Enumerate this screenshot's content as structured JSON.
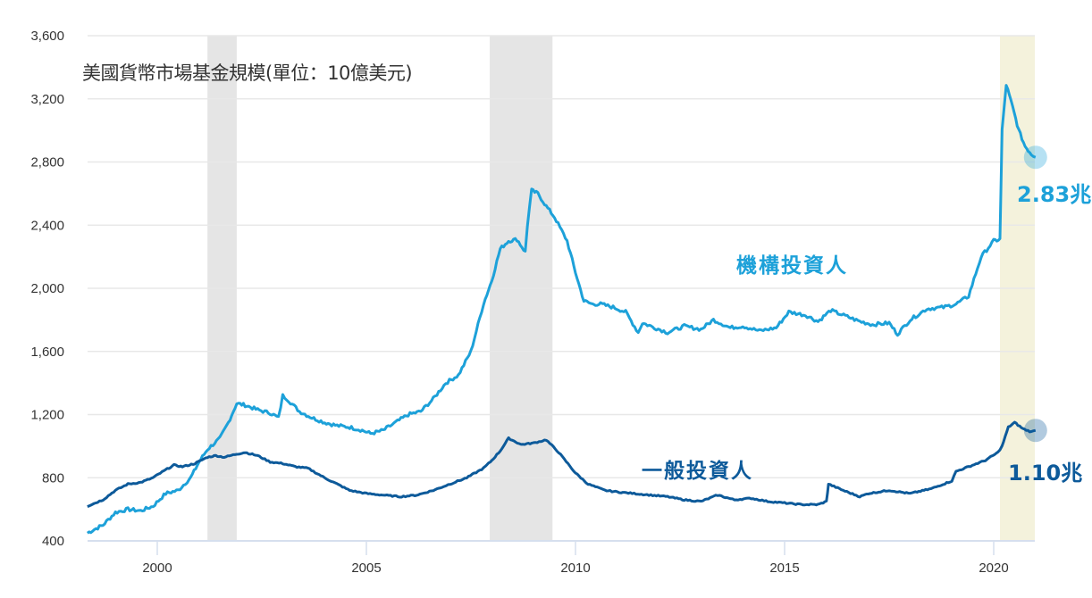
{
  "title": "美國貨幣市場基金規模(單位：10億美元)",
  "colors": {
    "institutional": "#1da1d9",
    "retail": "#0d5a9a",
    "recession_band": "#e5e5e5",
    "covid_band": "#f4f2dc",
    "grid": "#e8e8e8",
    "axis": "#d6dfee"
  },
  "labels": {
    "institutional": "機構投資人",
    "retail": "一般投資人",
    "institutional_end": "2.83兆",
    "retail_end": "1.10兆"
  },
  "chart_data": {
    "type": "line",
    "title": "美國貨幣市場基金規模(單位：10億美元)",
    "xlabel": "",
    "ylabel": "",
    "ylim": [
      400,
      3600
    ],
    "xlim": [
      1998.33,
      2021.0
    ],
    "yticks": [
      400,
      800,
      1200,
      1600,
      2000,
      2400,
      2800,
      3200,
      3600
    ],
    "ytick_labels": [
      "400",
      "800",
      "1,200",
      "1,600",
      "2,000",
      "2,400",
      "2,800",
      "3,200",
      "3,600"
    ],
    "xticks": [
      2000,
      2005,
      2010,
      2015,
      2020
    ],
    "xtick_labels": [
      "2000",
      "2005",
      "2010",
      "2015",
      "2020"
    ],
    "grid": true,
    "legend": "none (inline series labels)",
    "shaded_regions": [
      {
        "name": "recession-2001",
        "start": 2001.2,
        "end": 2001.9,
        "color": "#e5e5e5"
      },
      {
        "name": "recession-2008",
        "start": 2007.95,
        "end": 2009.45,
        "color": "#e5e5e5"
      },
      {
        "name": "covid-2020",
        "start": 2020.15,
        "end": 2021.05,
        "color": "#f4f2dc"
      }
    ],
    "annotations": [
      {
        "text": "機構投資人",
        "series": "institutional"
      },
      {
        "text": "一般投資人",
        "series": "retail"
      },
      {
        "text": "2.83兆",
        "x": 2021.0,
        "y": 2830
      },
      {
        "text": "1.10兆",
        "x": 2021.0,
        "y": 1100
      }
    ],
    "series": [
      {
        "name": "機構投資人",
        "key": "institutional",
        "x": [
          1998.33,
          1998.7,
          1999.0,
          1999.3,
          1999.6,
          1999.9,
          2000.2,
          2000.5,
          2000.8,
          2001.0,
          2001.2,
          2001.5,
          2001.7,
          2001.9,
          2002.1,
          2002.4,
          2002.7,
          2002.9,
          2003.0,
          2003.1,
          2003.4,
          2003.7,
          2004.0,
          2004.3,
          2004.6,
          2004.9,
          2005.1,
          2005.4,
          2005.7,
          2006.0,
          2006.3,
          2006.6,
          2006.9,
          2007.2,
          2007.5,
          2007.8,
          2008.0,
          2008.2,
          2008.4,
          2008.6,
          2008.8,
          2008.85,
          2008.95,
          2009.1,
          2009.3,
          2009.5,
          2009.8,
          2010.0,
          2010.2,
          2010.4,
          2010.6,
          2010.9,
          2011.2,
          2011.5,
          2011.6,
          2011.8,
          2012.2,
          2012.6,
          2013.0,
          2013.3,
          2013.7,
          2014.0,
          2014.4,
          2014.8,
          2015.1,
          2015.5,
          2015.8,
          2016.1,
          2016.5,
          2016.8,
          2017.1,
          2017.5,
          2017.7,
          2018.0,
          2018.4,
          2018.8,
          2019.1,
          2019.4,
          2019.7,
          2020.0,
          2020.15,
          2020.2,
          2020.3,
          2020.45,
          2020.6,
          2020.75,
          2020.9,
          2021.0
        ],
        "y": [
          450,
          500,
          580,
          600,
          590,
          620,
          700,
          720,
          800,
          900,
          980,
          1050,
          1150,
          1270,
          1260,
          1230,
          1210,
          1180,
          1320,
          1300,
          1220,
          1180,
          1150,
          1130,
          1120,
          1100,
          1080,
          1100,
          1150,
          1200,
          1220,
          1300,
          1400,
          1450,
          1600,
          1900,
          2050,
          2250,
          2300,
          2310,
          2230,
          2400,
          2620,
          2600,
          2520,
          2450,
          2300,
          2100,
          1920,
          1900,
          1900,
          1880,
          1850,
          1720,
          1780,
          1760,
          1720,
          1760,
          1740,
          1800,
          1750,
          1760,
          1730,
          1750,
          1850,
          1830,
          1790,
          1860,
          1820,
          1790,
          1770,
          1780,
          1710,
          1800,
          1870,
          1880,
          1900,
          1950,
          2200,
          2300,
          2310,
          3000,
          3290,
          3150,
          3000,
          2900,
          2850,
          2830
        ]
      },
      {
        "name": "一般投資人",
        "key": "retail",
        "x": [
          1998.33,
          1998.7,
          1999.0,
          1999.3,
          1999.6,
          1999.9,
          2000.2,
          2000.4,
          2000.6,
          2000.9,
          2001.2,
          2001.4,
          2001.6,
          2001.9,
          2002.1,
          2002.4,
          2002.7,
          2003.0,
          2003.3,
          2003.6,
          2004.0,
          2004.3,
          2004.6,
          2005.0,
          2005.4,
          2005.8,
          2006.2,
          2006.6,
          2007.0,
          2007.4,
          2007.8,
          2008.0,
          2008.2,
          2008.4,
          2008.7,
          2009.0,
          2009.3,
          2009.6,
          2010.0,
          2010.3,
          2010.7,
          2011.0,
          2011.4,
          2011.8,
          2012.2,
          2012.6,
          2013.0,
          2013.4,
          2013.8,
          2014.2,
          2014.6,
          2015.0,
          2015.4,
          2015.8,
          2016.0,
          2016.05,
          2016.4,
          2016.8,
          2017.0,
          2017.5,
          2018.0,
          2018.5,
          2019.0,
          2019.1,
          2019.4,
          2019.8,
          2020.1,
          2020.2,
          2020.35,
          2020.5,
          2020.7,
          2020.9,
          2021.0
        ],
        "y": [
          620,
          660,
          720,
          760,
          770,
          800,
          850,
          880,
          870,
          890,
          930,
          940,
          930,
          950,
          960,
          940,
          900,
          890,
          870,
          860,
          800,
          760,
          720,
          700,
          690,
          680,
          690,
          720,
          760,
          800,
          860,
          910,
          970,
          1050,
          1010,
          1020,
          1040,
          960,
          830,
          760,
          720,
          710,
          700,
          690,
          680,
          660,
          650,
          690,
          660,
          670,
          650,
          640,
          630,
          630,
          650,
          760,
          720,
          680,
          700,
          720,
          700,
          730,
          780,
          840,
          870,
          910,
          960,
          1000,
          1120,
          1150,
          1110,
          1090,
          1100
        ]
      }
    ]
  }
}
